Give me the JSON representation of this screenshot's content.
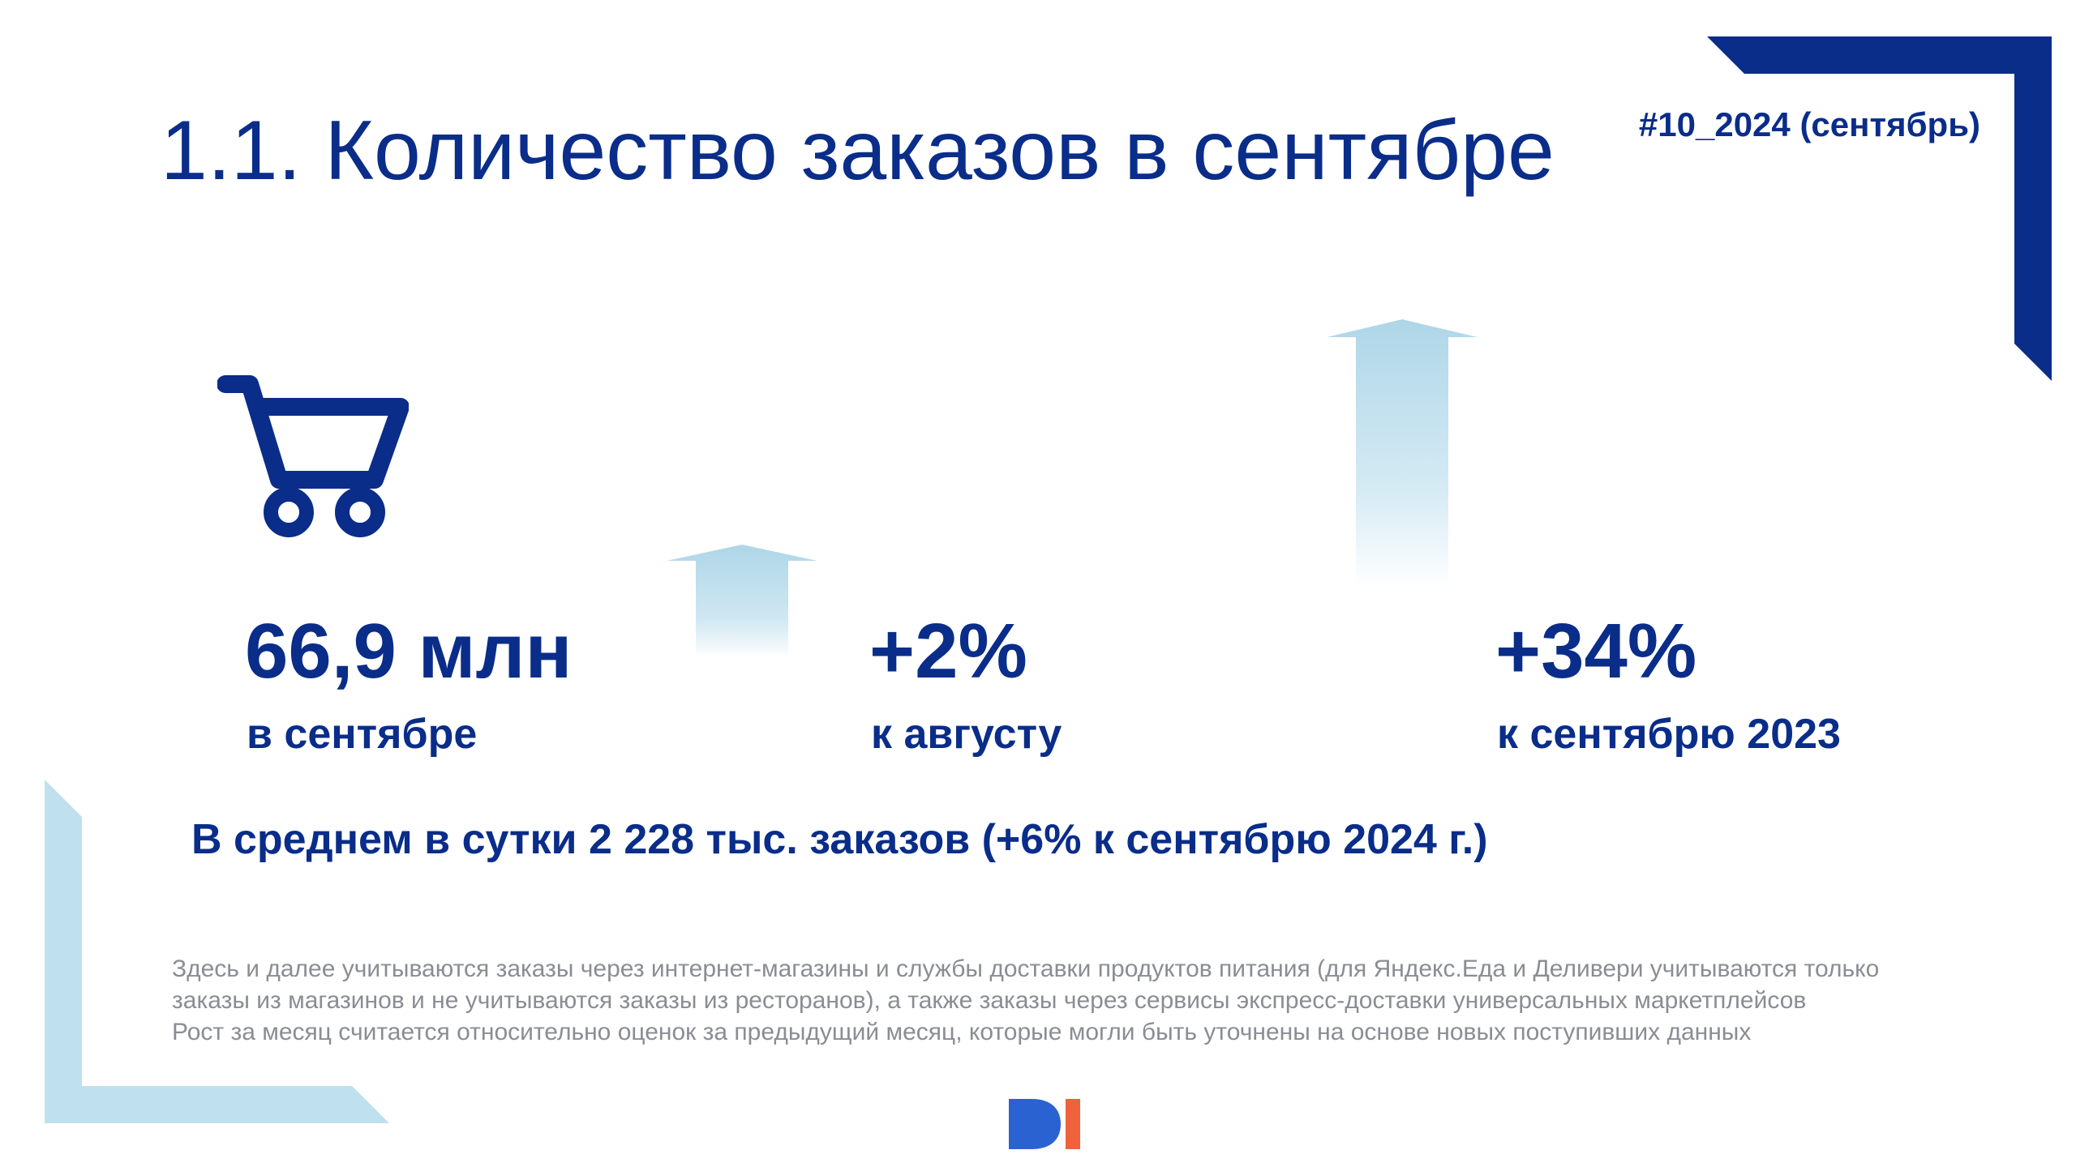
{
  "header": {
    "title": "1.1. Количество заказов в сентябре",
    "issue_tag": "#10_2024 (сентябрь)"
  },
  "metrics": [
    {
      "value": "66,9 млн",
      "label": "в сентябре",
      "icon": "shopping-cart-icon"
    },
    {
      "value": "+2%",
      "label": "к августу",
      "icon": "up-arrow-icon"
    },
    {
      "value": "+34%",
      "label": "к сентябрю 2023",
      "icon": "up-arrow-icon"
    }
  ],
  "average_line": "В среднем в сутки 2 228 тыс. заказов (+6% к сентябрю 2024 г.)",
  "notes": [
    "Здесь и далее учитываются заказы через интернет-магазины и службы доставки продуктов питания (для Яндекс.Еда и Деливери учитываются только заказы из магазинов и не учитываются заказы из ресторанов), а также заказы через сервисы экспресс-доставки универсальных маркетплейсов",
    "Рост за месяц считается относительно оценок за предыдущий месяц, которые могли быть уточнены на основе новых поступивших данных"
  ],
  "colors": {
    "primary": "#0a2d8a",
    "accent_light": "#bfe0ee",
    "note_gray": "#8a8d93",
    "logo_blue": "#2a62d1",
    "logo_orange": "#f0623b"
  },
  "logo_icon": "di-logo"
}
